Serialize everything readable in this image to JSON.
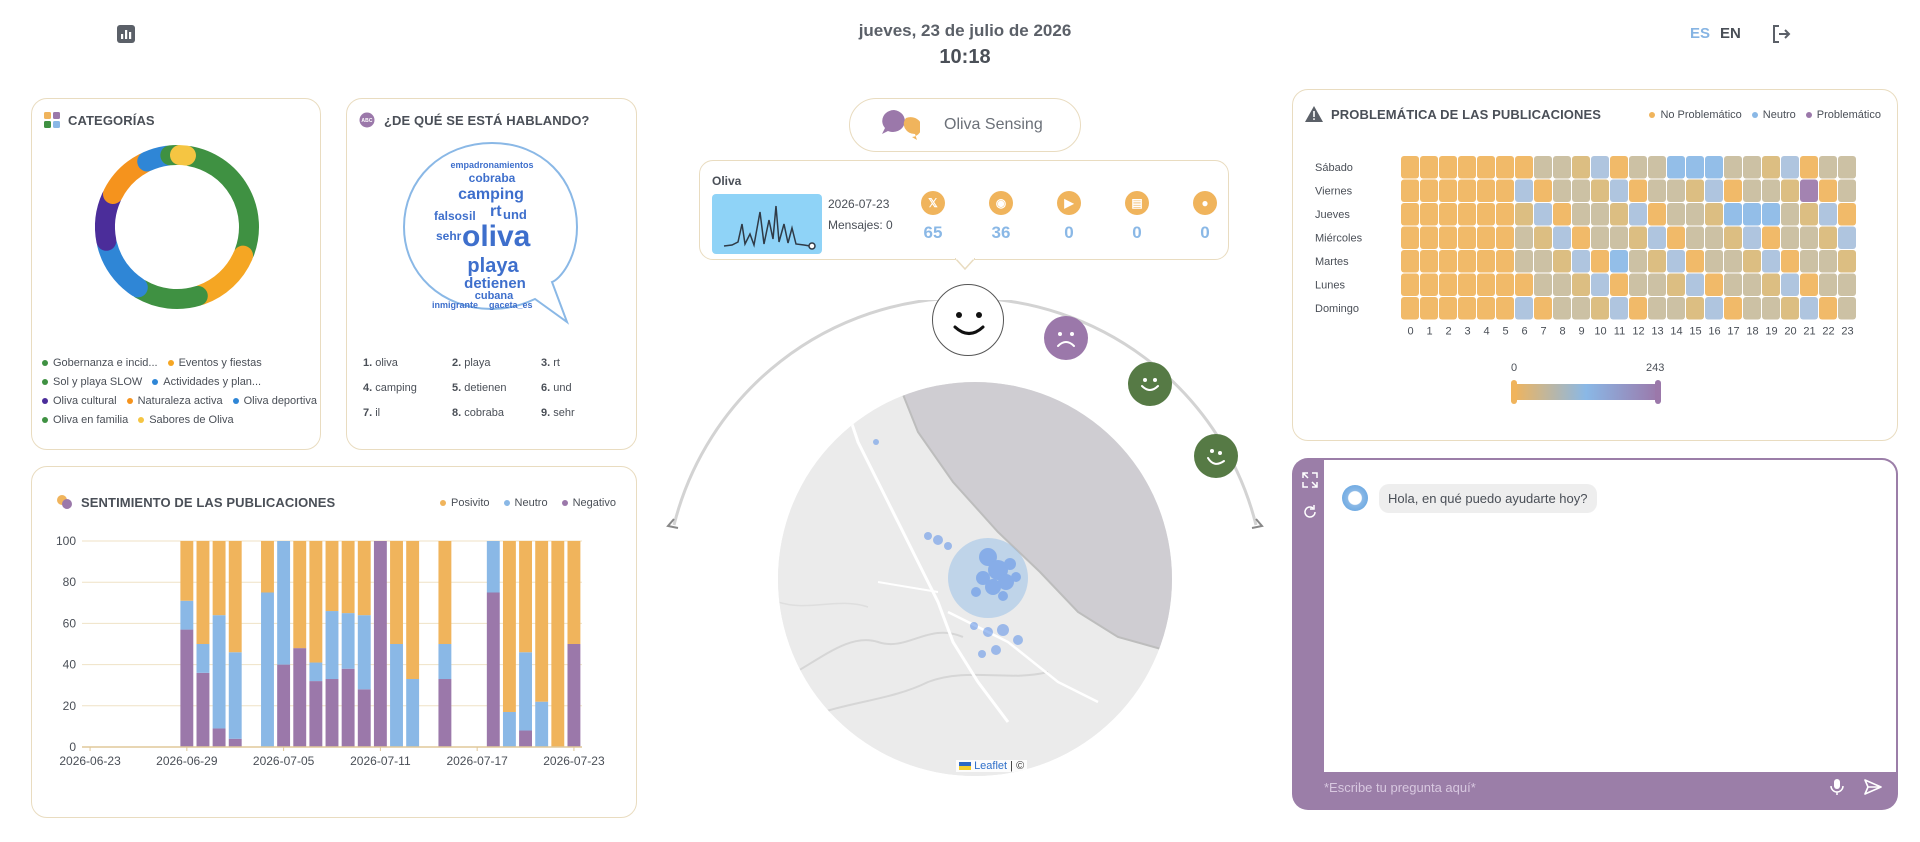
{
  "header": {
    "date": "jueves, 23 de julio de 2026",
    "time": "10:18",
    "lang_es": "ES",
    "lang_en": "EN",
    "chart_icon": "bar-chart-icon",
    "logout_icon": "logout-icon"
  },
  "categories": {
    "title": "CATEGORÍAS",
    "items": [
      {
        "label": "Gobernanza e incid...",
        "color": "#3f9142",
        "value": 27
      },
      {
        "label": "Eventos y fiestas",
        "color": "#f5a623",
        "value": 13
      },
      {
        "label": "Sol y playa SLOW",
        "color": "#3f9142",
        "value": 13
      },
      {
        "label": "Actividades y plan...",
        "color": "#2f86d6",
        "value": 12
      },
      {
        "label": "Oliva cultural",
        "color": "#4b2d9a",
        "value": 10
      },
      {
        "label": "Naturaleza activa",
        "color": "#f5931d",
        "value": 10
      },
      {
        "label": "Oliva deportiva",
        "color": "#2f86d6",
        "value": 5
      },
      {
        "label": "Oliva en familia",
        "color": "#3f9142",
        "value": 2
      },
      {
        "label": "Sabores de Oliva",
        "color": "#f5c542",
        "value": 2
      }
    ]
  },
  "topics": {
    "title": "¿DE QUÉ SE ESTÁ HABLANDO?",
    "words": [
      "empadronamientos",
      "cobraba",
      "camping",
      "falsos",
      "il",
      "rt",
      "und",
      "sehr",
      "oliva",
      "playa",
      "detienen",
      "cubana",
      "inmigrante",
      "gaceta_es"
    ],
    "ranking": [
      {
        "n": "1.",
        "w": "oliva"
      },
      {
        "n": "2.",
        "w": "playa"
      },
      {
        "n": "3.",
        "w": "rt"
      },
      {
        "n": "4.",
        "w": "camping"
      },
      {
        "n": "5.",
        "w": "detienen"
      },
      {
        "n": "6.",
        "w": "und"
      },
      {
        "n": "7.",
        "w": "il"
      },
      {
        "n": "8.",
        "w": "cobraba"
      },
      {
        "n": "9.",
        "w": "sehr"
      }
    ]
  },
  "center": {
    "brand": "Oliva Sensing",
    "place": "Oliva",
    "date": "2026-07-23",
    "messages": "Mensajes: 0",
    "sources": [
      {
        "icon": "x-icon",
        "value": "65"
      },
      {
        "icon": "rss-icon",
        "value": "36"
      },
      {
        "icon": "youtube-icon",
        "value": "0"
      },
      {
        "icon": "news-icon",
        "value": "0"
      },
      {
        "icon": "location-icon",
        "value": "0"
      }
    ],
    "map_attr_leaflet": "Leaflet",
    "map_attr_rest": " | © "
  },
  "problem": {
    "title": "PROBLEMÁTICA DE LAS PUBLICACIONES",
    "legend": [
      {
        "label": "No Problemático",
        "color": "#f0b45c"
      },
      {
        "label": "Neutro",
        "color": "#8ab8e6"
      },
      {
        "label": "Problemático",
        "color": "#9b78aa"
      }
    ],
    "days": [
      "Sábado",
      "Viernes",
      "Jueves",
      "Miércoles",
      "Martes",
      "Lunes",
      "Domingo"
    ],
    "hours": [
      "0",
      "1",
      "2",
      "3",
      "4",
      "5",
      "6",
      "7",
      "8",
      "9",
      "10",
      "11",
      "12",
      "13",
      "14",
      "15",
      "16",
      "17",
      "18",
      "19",
      "20",
      "21",
      "22",
      "23"
    ],
    "scale_min": "0",
    "scale_max": "243"
  },
  "sentiment": {
    "title": "SENTIMIENTO DE LAS PUBLICACIONES",
    "legend": [
      {
        "label": "Posivito",
        "color": "#f0b45c"
      },
      {
        "label": "Neutro",
        "color": "#8ab8e6"
      },
      {
        "label": "Negativo",
        "color": "#9b78aa"
      }
    ]
  },
  "chat": {
    "greeting": "Hola, en qué puedo ayudarte hoy?",
    "placeholder": "*Escribe tu pregunta aquí*"
  },
  "chart_data": {
    "type": "bar",
    "stacked": true,
    "title": "SENTIMIENTO DE LAS PUBLICACIONES",
    "ylim": [
      0,
      100
    ],
    "yticks": [
      0,
      20,
      40,
      60,
      80,
      100
    ],
    "xticks": [
      "2026-06-23",
      "2026-06-29",
      "2026-07-05",
      "2026-07-11",
      "2026-07-17",
      "2026-07-23"
    ],
    "categories": [
      "2026-06-23",
      "2026-06-24",
      "2026-06-25",
      "2026-06-26",
      "2026-06-27",
      "2026-06-28",
      "2026-06-29",
      "2026-06-30",
      "2026-07-01",
      "2026-07-02",
      "2026-07-03",
      "2026-07-04",
      "2026-07-05",
      "2026-07-06",
      "2026-07-07",
      "2026-07-08",
      "2026-07-09",
      "2026-07-10",
      "2026-07-11",
      "2026-07-12",
      "2026-07-13",
      "2026-07-14",
      "2026-07-15",
      "2026-07-16",
      "2026-07-17",
      "2026-07-18",
      "2026-07-19",
      "2026-07-20",
      "2026-07-21",
      "2026-07-22",
      "2026-07-23"
    ],
    "series": [
      {
        "name": "Negativo",
        "values": [
          0,
          0,
          0,
          0,
          0,
          0,
          57,
          36,
          9,
          4,
          0,
          0,
          40,
          48,
          32,
          33,
          38,
          28,
          100,
          0,
          0,
          0,
          33,
          0,
          0,
          75,
          0,
          8,
          0,
          0,
          50
        ]
      },
      {
        "name": "Neutro",
        "values": [
          0,
          0,
          0,
          0,
          0,
          0,
          14,
          14,
          55,
          42,
          0,
          75,
          60,
          0,
          9,
          33,
          27,
          36,
          0,
          50,
          33,
          0,
          17,
          0,
          0,
          25,
          17,
          38,
          22,
          0,
          0
        ]
      },
      {
        "name": "Posivito",
        "values": [
          0,
          0,
          0,
          0,
          0,
          0,
          29,
          50,
          36,
          54,
          0,
          25,
          0,
          52,
          59,
          34,
          35,
          36,
          0,
          50,
          67,
          0,
          50,
          0,
          0,
          0,
          83,
          54,
          78,
          100,
          50
        ]
      }
    ]
  }
}
